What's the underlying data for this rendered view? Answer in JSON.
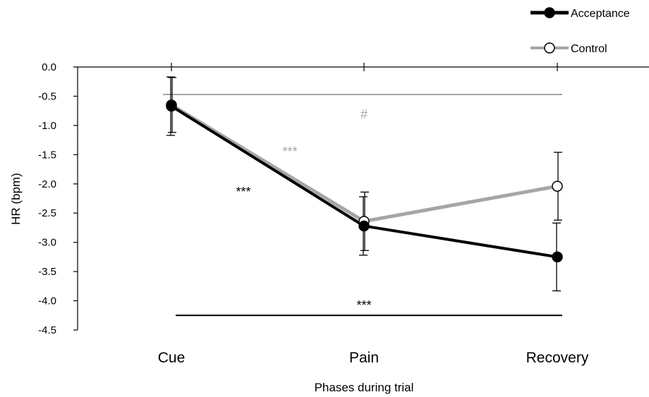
{
  "chart_data": {
    "type": "line",
    "categories": [
      "Cue",
      "Pain",
      "Recovery"
    ],
    "xlabel": "Phases during trial",
    "ylabel": "HR (bpm)",
    "ylim": [
      -4.5,
      0.0
    ],
    "yticks": [
      "0.0",
      "-0.5",
      "-1.0",
      "-1.5",
      "-2.0",
      "-2.5",
      "-3.0",
      "-3.5",
      "-4.0",
      "-4.5"
    ],
    "legend_position": "top-right",
    "grid": false,
    "series": [
      {
        "name": "Acceptance",
        "values": [
          -0.67,
          -2.72,
          -3.25
        ],
        "errors": [
          0.5,
          0.5,
          0.58
        ],
        "color": "#000000",
        "marker": "filled-circle"
      },
      {
        "name": "Control",
        "values": [
          -0.65,
          -2.64,
          -2.04
        ],
        "errors": [
          0.47,
          0.5,
          0.58
        ],
        "color": "#a6a6a6",
        "marker": "open-circle"
      }
    ],
    "annotations": [
      {
        "text": "#",
        "color": "#a6a6a6",
        "kind": "bracket",
        "from": "Cue",
        "to": "Recovery",
        "y": -0.47
      },
      {
        "text": "***",
        "color": "#a6a6a6",
        "kind": "label",
        "near": "Control Cue-Pain segment"
      },
      {
        "text": "***",
        "color": "#000000",
        "kind": "label",
        "near": "Acceptance Cue-Pain segment"
      },
      {
        "text": "***",
        "color": "#000000",
        "kind": "bracket",
        "from": "Cue",
        "to": "Recovery",
        "y": -4.25
      }
    ]
  }
}
